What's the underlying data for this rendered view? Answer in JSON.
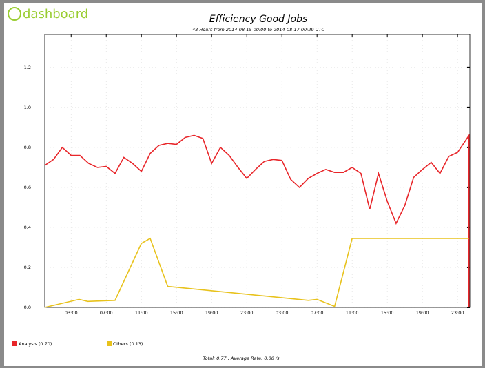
{
  "logo": "dashboard",
  "chart_data": {
    "type": "line",
    "title": "Efficiency Good Jobs",
    "subtitle": "48 Hours from 2014-08-15 00:00 to 2014-08-17 00:29 UTC",
    "series": [
      {
        "name": "Analysis (0.70)",
        "color": "#e8262a",
        "x": [
          0,
          1,
          2,
          3,
          4,
          5,
          6,
          7,
          8,
          9,
          10,
          11,
          12,
          13,
          14,
          15,
          16,
          17,
          18,
          19,
          20,
          21,
          22,
          23,
          24,
          25,
          26,
          27,
          28,
          29,
          30,
          31,
          32,
          33,
          34,
          35,
          36,
          37,
          38,
          39,
          40,
          41,
          42,
          43,
          44,
          45,
          46,
          47,
          48.3,
          48.3
        ],
        "values": [
          0.71,
          0.74,
          0.8,
          0.76,
          0.76,
          0.72,
          0.7,
          0.705,
          0.67,
          0.75,
          0.72,
          0.68,
          0.77,
          0.81,
          0.82,
          0.815,
          0.85,
          0.86,
          0.845,
          0.72,
          0.8,
          0.76,
          0.7,
          0.645,
          0.69,
          0.73,
          0.74,
          0.735,
          0.64,
          0.6,
          0.645,
          0.67,
          0.69,
          0.675,
          0.675,
          0.7,
          0.67,
          0.49,
          0.67,
          0.53,
          0.42,
          0.51,
          0.65,
          0.69,
          0.725,
          0.67,
          0.755,
          0.775,
          0.86,
          0
        ]
      },
      {
        "name": "Others (0.13)",
        "color": "#e8c21c",
        "x": [
          0,
          3.9,
          4.9,
          8,
          11,
          12,
          14,
          30,
          31,
          33,
          35,
          48.3
        ],
        "values": [
          0,
          0.04,
          0.03,
          0.035,
          0.32,
          0.345,
          0.105,
          0.035,
          0.04,
          0.005,
          0.345,
          0.345
        ]
      }
    ],
    "xlim": [
      0,
      48.4
    ],
    "xticks": [
      {
        "value": 3,
        "label": "03:00"
      },
      {
        "value": 7,
        "label": "07:00"
      },
      {
        "value": 11,
        "label": "11:00"
      },
      {
        "value": 15,
        "label": "15:00"
      },
      {
        "value": 19,
        "label": "19:00"
      },
      {
        "value": 23,
        "label": "23:00"
      },
      {
        "value": 27,
        "label": "03:00"
      },
      {
        "value": 31,
        "label": "07:00"
      },
      {
        "value": 35,
        "label": "11:00"
      },
      {
        "value": 39,
        "label": "15:00"
      },
      {
        "value": 43,
        "label": "19:00"
      },
      {
        "value": 47,
        "label": "23:00"
      }
    ],
    "ylim": [
      0,
      1.365
    ],
    "yticks": [
      {
        "value": 0,
        "label": "0.0"
      },
      {
        "value": 0.2,
        "label": "0.2"
      },
      {
        "value": 0.4,
        "label": "0.4"
      },
      {
        "value": 0.6,
        "label": "0.6"
      },
      {
        "value": 0.8,
        "label": "0.8"
      },
      {
        "value": 1,
        "label": "1.0"
      },
      {
        "value": 1.2,
        "label": "1.2"
      }
    ],
    "grid": true,
    "footer": "Total: 0.77 , Average Rate: 0.00 /s"
  }
}
